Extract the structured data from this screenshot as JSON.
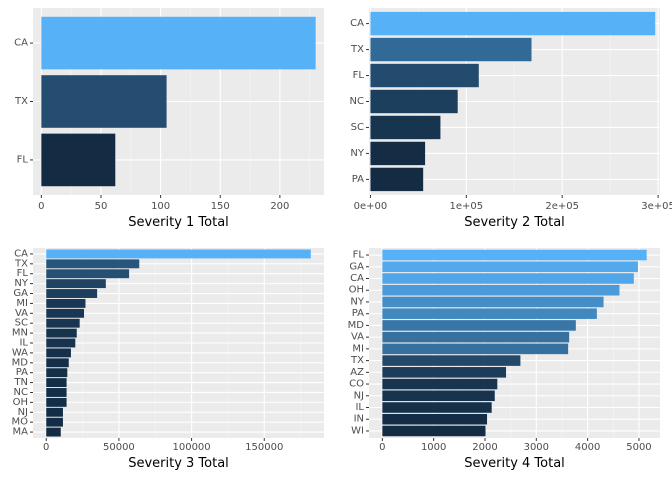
{
  "chart_data": [
    {
      "type": "bar",
      "orientation": "horizontal",
      "categories": [
        "CA",
        "TX",
        "FL"
      ],
      "values": [
        230,
        105,
        62
      ],
      "xlabel": "Severity 1 Total",
      "ylabel": "",
      "xlim": [
        -7,
        237
      ],
      "xticks": [
        0,
        50,
        100,
        150,
        200
      ],
      "xtick_labels": [
        "0",
        "50",
        "100",
        "150",
        "200"
      ],
      "grid": true,
      "fill_scale": "continuous blue"
    },
    {
      "type": "bar",
      "orientation": "horizontal",
      "categories": [
        "CA",
        "TX",
        "FL",
        "NC",
        "SC",
        "NY",
        "PA"
      ],
      "values": [
        297000,
        168000,
        113000,
        91000,
        73000,
        57000,
        55000
      ],
      "xlabel": "Severity 2 Total",
      "ylabel": "",
      "xlim": [
        -1500,
        302000
      ],
      "xticks": [
        0,
        100000,
        200000,
        300000
      ],
      "xtick_labels": [
        "0e+00",
        "1e+05",
        "2e+05",
        "3e+05"
      ],
      "grid": true,
      "fill_scale": "continuous blue"
    },
    {
      "type": "bar",
      "orientation": "horizontal",
      "categories": [
        "CA",
        "TX",
        "FL",
        "NY",
        "GA",
        "MI",
        "VA",
        "SC",
        "MN",
        "IL",
        "WA",
        "MD",
        "PA",
        "TN",
        "NC",
        "OH",
        "NJ",
        "MO",
        "MA"
      ],
      "values": [
        182000,
        64000,
        57000,
        41000,
        35000,
        27000,
        26000,
        23000,
        21000,
        20000,
        17000,
        15500,
        14500,
        14000,
        14000,
        14000,
        11500,
        11500,
        10000
      ],
      "xlabel": "Severity 3 Total",
      "ylabel": "",
      "xlim": [
        -9100,
        191100
      ],
      "xticks": [
        0,
        50000,
        100000,
        150000
      ],
      "xtick_labels": [
        "0",
        "50000",
        "100000",
        "150000"
      ],
      "grid": true,
      "fill_scale": "continuous blue"
    },
    {
      "type": "bar",
      "orientation": "horizontal",
      "categories": [
        "FL",
        "GA",
        "CA",
        "OH",
        "NY",
        "PA",
        "MD",
        "VA",
        "MI",
        "TX",
        "AZ",
        "CO",
        "NJ",
        "IL",
        "IN",
        "WI"
      ],
      "values": [
        5150,
        4980,
        4900,
        4620,
        4310,
        4180,
        3770,
        3640,
        3620,
        2690,
        2410,
        2240,
        2190,
        2130,
        2040,
        2010
      ],
      "xlabel": "Severity 4 Total",
      "ylabel": "",
      "xlim": [
        -260,
        5410
      ],
      "xticks": [
        0,
        1000,
        2000,
        3000,
        4000,
        5000
      ],
      "xtick_labels": [
        "0",
        "1000",
        "2000",
        "3000",
        "4000",
        "5000"
      ],
      "grid": true,
      "fill_scale": "continuous blue"
    }
  ],
  "colors": {
    "panel_background": "#EBEBEB",
    "grid_major": "#FFFFFF",
    "grid_minor": "#F5F5F5",
    "fill_low": "#132B43",
    "fill_high": "#56B1F7"
  }
}
